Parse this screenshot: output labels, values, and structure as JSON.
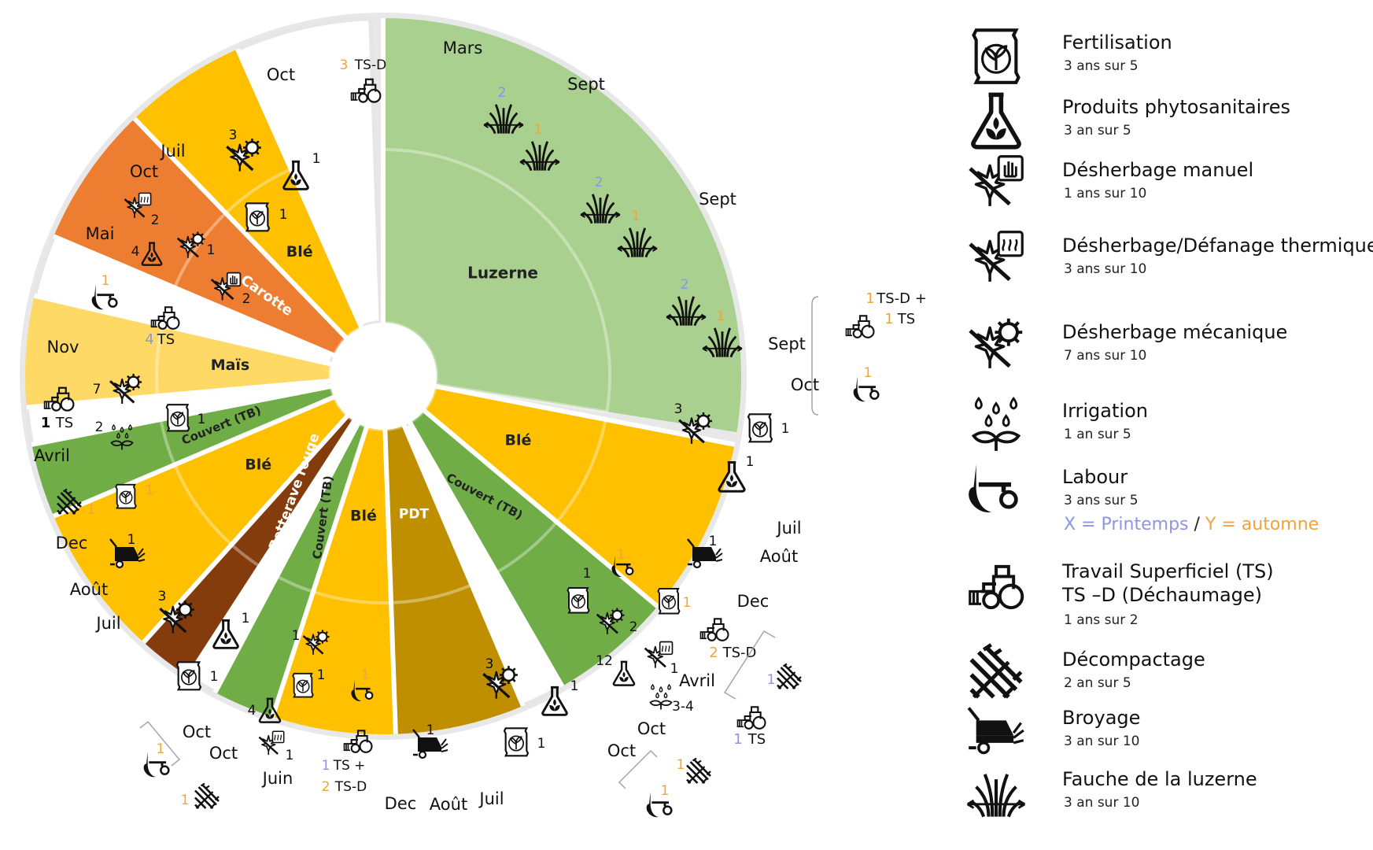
{
  "wheel": {
    "sectors": [
      {
        "crop": "Luzerne",
        "color": "#a9d08e",
        "a1": 0,
        "a2": 99,
        "months": [
          "Mars",
          "Sept",
          "Sept",
          "Sept"
        ]
      },
      {
        "crop": "Blé",
        "color": "#ffc000",
        "a1": 101,
        "a2": 130,
        "months": [
          "Oct",
          "Juil"
        ]
      },
      {
        "crop": "Couvert (TB)",
        "color": "#70ad47",
        "a1": 130,
        "a2": 150,
        "months": [
          "Août",
          "Dec"
        ]
      },
      {
        "crop": "",
        "color": "#ffffff",
        "a1": 150,
        "a2": 157,
        "months": []
      },
      {
        "crop": "PDT",
        "color": "#bf8f00",
        "a1": 157,
        "a2": 178,
        "months": [
          "Avril",
          "Oct"
        ]
      },
      {
        "crop": "Blé",
        "color": "#ffc000",
        "a1": 178,
        "a2": 198,
        "months": [
          "Oct",
          "Juil"
        ]
      },
      {
        "crop": "Couvert (TB)",
        "color": "#70ad47",
        "a1": 198,
        "a2": 208,
        "months": [
          "Août",
          "Dec"
        ]
      },
      {
        "crop": "",
        "color": "#ffffff",
        "a1": 208,
        "a2": 213,
        "months": []
      },
      {
        "crop": "Betterave rouge",
        "color": "#843c0c",
        "a1": 213,
        "a2": 222,
        "months": [
          "Juin",
          "Oct"
        ]
      },
      {
        "crop": "Blé",
        "color": "#ffc000",
        "a1": 222,
        "a2": 247,
        "months": [
          "Oct",
          "Juil"
        ]
      },
      {
        "crop": "Couvert (TB)",
        "color": "#70ad47",
        "a1": 247,
        "a2": 259,
        "months": [
          "Août",
          "Dec"
        ]
      },
      {
        "crop": "",
        "color": "#ffffff",
        "a1": 259,
        "a2": 265,
        "months": []
      },
      {
        "crop": "Maïs",
        "color": "#ffd966",
        "a1": 265,
        "a2": 283,
        "months": [
          "Avril",
          "Nov"
        ]
      },
      {
        "crop": "",
        "color": "#ffffff",
        "a1": 283,
        "a2": 293,
        "months": []
      },
      {
        "crop": "Carotte",
        "color": "#ed7d31",
        "a1": 293,
        "a2": 316,
        "months": [
          "Mai",
          "Oct"
        ]
      },
      {
        "crop": "Blé",
        "color": "#ffc000",
        "a1": 316,
        "a2": 336,
        "months": [
          "Juil",
          "Oct"
        ]
      },
      {
        "crop": "",
        "color": "#ffffff",
        "a1": 336,
        "a2": 358,
        "months": []
      }
    ],
    "counts": {
      "luz_fauche": [
        "2",
        "1",
        "2",
        "1",
        "2",
        "1"
      ],
      "ble1": {
        "mecanique": "3",
        "phyto": "1",
        "fertil": "1"
      },
      "couvert1_broyage": "1",
      "gap_pdt": {
        "labour": "1",
        "fertil": "1",
        "tsd": "2",
        "tsd_label": "TS-D"
      },
      "pdt": {
        "fertil": "1",
        "mecanique": "2",
        "thermique": "1",
        "phyto": "12",
        "irrigation": "3-4"
      },
      "ble2": {
        "mecanique": "3",
        "phyto": "1",
        "fertil": "1"
      },
      "couvert2_broyage": "1",
      "gap_bet": {
        "labour": "1",
        "ts": "1",
        "ts_label": "TS +",
        "tsd": "2",
        "tsd_label": "TS-D"
      },
      "bet": {
        "mecanique": "1",
        "fertil": "1",
        "phyto": "4",
        "thermique": "1"
      },
      "ble3": {
        "mecanique": "3",
        "phyto": "1",
        "fertil": "1"
      },
      "couvert3_broyage": "1",
      "gap_mais": {
        "decompactage": "1",
        "fertil": "1"
      },
      "mais": {
        "ts": "1",
        "ts_label": "TS",
        "mecanique": "7",
        "fertil": "1",
        "irrigation": "2"
      },
      "gap_carotte": {
        "labour": "1",
        "ts": "4",
        "ts_label": "TS"
      },
      "carotte": {
        "thermique": "2",
        "phyto": "4",
        "mecanique": "1",
        "manuel": "2"
      },
      "ble4": {
        "mecanique": "3",
        "phyto": "1",
        "fertil": "1"
      },
      "gap_top": {
        "tsd": "3",
        "tsd_label": "TS-D"
      },
      "right_bracket": {
        "tsd": "1",
        "tsd_label": "TS-D +",
        "ts": "1",
        "ts_label": "TS",
        "labour": "1"
      },
      "outer1": {
        "decompactage": "1",
        "ts": "1",
        "ts_label": "TS"
      },
      "outer2": {
        "decompactage": "1",
        "labour": "1"
      },
      "outer3": {
        "labour": "1",
        "decompactage": "1"
      }
    },
    "colors": {
      "spring": "#8f94e3",
      "autumn": "#f2a33a"
    }
  },
  "legend": {
    "items": [
      {
        "icon": "fertilisation-icon",
        "title": "Fertilisation",
        "freq": "3 ans sur 5"
      },
      {
        "icon": "phyto-icon",
        "title": "Produits phytosanitaires",
        "freq": "3 an sur  5"
      },
      {
        "icon": "manual-weeding-icon",
        "title": "Désherbage manuel",
        "freq": "1 ans sur 10"
      },
      {
        "icon": "thermal-weeding-icon",
        "title": "Désherbage/Défanage thermique",
        "freq": "3 ans sur 10"
      },
      {
        "icon": "mechanical-weeding-icon",
        "title": "Désherbage mécanique",
        "freq": "7 ans sur 10"
      },
      {
        "icon": "irrigation-icon",
        "title": "Irrigation",
        "freq": "1 an sur 5"
      },
      {
        "icon": "plough-icon",
        "title": "Labour",
        "freq": "3 ans sur 5"
      },
      {
        "icon": "tractor-icon",
        "title": "Travail Superficiel (TS)",
        "title2": "TS –D (Déchaumage)",
        "freq": "1 ans sur 2"
      },
      {
        "icon": "decompaction-icon",
        "title": "Décompactage",
        "freq": "2 an sur 5"
      },
      {
        "icon": "mulcher-icon",
        "title": "Broyage",
        "freq": "3 an sur 10"
      },
      {
        "icon": "mowing-icon",
        "title": "Fauche de la luzerne",
        "freq": "3  an sur 10"
      }
    ],
    "note_spring": "X = Printemps",
    "note_slash": "/",
    "note_autumn": "Y = automne"
  }
}
